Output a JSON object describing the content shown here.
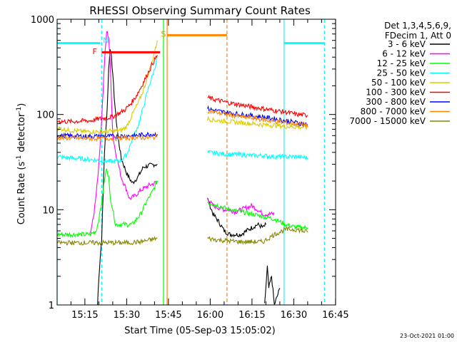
{
  "chart_data": {
    "type": "line",
    "title": "RHESSI Observing Summary Count Rates",
    "xlabel": "Start Time (05-Sep-03 15:05:02)",
    "ylabel_main": "Count Rate (s",
    "ylabel_sup1": "-1",
    "ylabel_mid": " detector",
    "ylabel_sup2": "-1",
    "ylabel_end": ")",
    "xlim_minutes": [
      0,
      100
    ],
    "ylim": [
      1,
      1000
    ],
    "yscale": "log",
    "xticks": [
      {
        "label": "15:15",
        "value": 9.97
      },
      {
        "label": "15:30",
        "value": 24.97
      },
      {
        "label": "15:45",
        "value": 39.97
      },
      {
        "label": "16:00",
        "value": 54.97
      },
      {
        "label": "16:15",
        "value": 69.97
      },
      {
        "label": "16:30",
        "value": 84.97
      },
      {
        "label": "16:45",
        "value": 99.97
      }
    ],
    "yticks": [
      {
        "label": "1",
        "value": 1
      },
      {
        "label": "10",
        "value": 10
      },
      {
        "label": "100",
        "value": 100
      },
      {
        "label": "1000",
        "value": 1000
      }
    ],
    "legend": {
      "header1": "Det 1,3,4,5,6,9,",
      "header2": "FDecim 1, Att 0",
      "position": "right"
    },
    "series": [
      {
        "name": "3 - 6 keV",
        "color": "#000000",
        "points": [
          [
            14.5,
            1
          ],
          [
            15,
            2
          ],
          [
            16,
            5
          ],
          [
            17,
            40
          ],
          [
            18,
            120
          ],
          [
            18.5,
            300
          ],
          [
            19,
            480
          ],
          [
            19.5,
            430
          ],
          [
            20,
            250
          ],
          [
            21,
            100
          ],
          [
            22,
            55
          ],
          [
            23,
            35
          ],
          [
            25,
            24
          ],
          [
            27,
            19
          ],
          [
            29,
            22
          ],
          [
            31,
            28
          ],
          [
            33,
            29
          ],
          [
            35,
            30
          ],
          [
            36,
            30
          ]
        ],
        "points2": [
          [
            54,
            13
          ],
          [
            56,
            9
          ],
          [
            58,
            7.5
          ],
          [
            60,
            6
          ],
          [
            62,
            5.5
          ],
          [
            64,
            5.5
          ],
          [
            66,
            5.5
          ],
          [
            68,
            6
          ],
          [
            70,
            6.5
          ],
          [
            72,
            7
          ],
          [
            74,
            6.5
          ],
          [
            75,
            7
          ]
        ],
        "points3": [
          [
            74.5,
            1
          ],
          [
            75.5,
            2.5
          ],
          [
            76,
            1.5
          ],
          [
            77,
            2
          ],
          [
            78,
            1
          ],
          [
            80,
            1.5
          ]
        ]
      },
      {
        "name": "6 - 12 keV",
        "color": "#ff00ff",
        "points": [
          [
            12,
            6
          ],
          [
            13,
            8
          ],
          [
            14,
            15
          ],
          [
            15,
            30
          ],
          [
            16,
            90
          ],
          [
            17,
            350
          ],
          [
            17.8,
            750
          ],
          [
            18.5,
            650
          ],
          [
            19,
            380
          ],
          [
            19.5,
            150
          ],
          [
            20,
            60
          ],
          [
            21,
            40
          ],
          [
            22,
            30
          ],
          [
            23,
            22
          ],
          [
            25,
            16
          ],
          [
            26,
            13
          ],
          [
            28,
            14
          ],
          [
            30,
            16
          ],
          [
            33,
            18
          ],
          [
            35,
            19
          ],
          [
            36,
            20
          ]
        ],
        "points2": [
          [
            54,
            13
          ],
          [
            56,
            11
          ],
          [
            58,
            10.5
          ],
          [
            60,
            10
          ],
          [
            62,
            10
          ],
          [
            64,
            9.5
          ],
          [
            66,
            10
          ],
          [
            68,
            10.5
          ],
          [
            70,
            11
          ],
          [
            72,
            10
          ],
          [
            74,
            9
          ],
          [
            76,
            9
          ],
          [
            78,
            9
          ]
        ]
      },
      {
        "name": "12 - 25 keV",
        "color": "#00ff00",
        "points": [
          [
            0,
            5.5
          ],
          [
            5,
            5.5
          ],
          [
            10,
            5.5
          ],
          [
            12,
            5.5
          ],
          [
            14,
            6
          ],
          [
            15,
            8
          ],
          [
            16,
            12
          ],
          [
            17,
            20
          ],
          [
            17.8,
            28
          ],
          [
            18.5,
            22
          ],
          [
            19,
            14
          ],
          [
            20,
            10
          ],
          [
            21,
            7
          ],
          [
            24,
            7
          ],
          [
            27,
            7
          ],
          [
            30,
            9
          ],
          [
            32,
            12
          ],
          [
            34,
            15
          ],
          [
            36,
            20
          ]
        ],
        "points2": [
          [
            54,
            12
          ],
          [
            58,
            11
          ],
          [
            62,
            10
          ],
          [
            66,
            9.5
          ],
          [
            70,
            9
          ],
          [
            74,
            8.5
          ],
          [
            78,
            8
          ],
          [
            82,
            7
          ],
          [
            86,
            6.5
          ],
          [
            90,
            6.5
          ]
        ]
      },
      {
        "name": "25 - 50 keV",
        "color": "#00ffff",
        "points": [
          [
            0,
            36
          ],
          [
            5,
            35
          ],
          [
            10,
            34
          ],
          [
            15,
            33
          ],
          [
            20,
            32
          ],
          [
            23,
            33
          ],
          [
            25,
            38
          ],
          [
            27,
            55
          ],
          [
            29,
            75
          ],
          [
            31,
            120
          ],
          [
            33,
            200
          ],
          [
            35,
            300
          ],
          [
            36,
            400
          ]
        ],
        "points2": [
          [
            54,
            40
          ],
          [
            58,
            39
          ],
          [
            62,
            38
          ],
          [
            66,
            38
          ],
          [
            70,
            37
          ],
          [
            74,
            37
          ],
          [
            78,
            36
          ],
          [
            82,
            36
          ],
          [
            86,
            36
          ],
          [
            90,
            35
          ]
        ]
      },
      {
        "name": "50 - 100 keV",
        "color": "#ddcc00",
        "points": [
          [
            0,
            72
          ],
          [
            5,
            68
          ],
          [
            10,
            66
          ],
          [
            15,
            66
          ],
          [
            20,
            67
          ],
          [
            23,
            68
          ],
          [
            25,
            75
          ],
          [
            27,
            100
          ],
          [
            29,
            130
          ],
          [
            31,
            180
          ],
          [
            33,
            280
          ],
          [
            35,
            450
          ],
          [
            36,
            600
          ]
        ],
        "points2": [
          [
            54,
            90
          ],
          [
            58,
            86
          ],
          [
            62,
            84
          ],
          [
            66,
            82
          ],
          [
            70,
            80
          ],
          [
            74,
            78
          ],
          [
            78,
            77
          ],
          [
            82,
            75
          ],
          [
            86,
            74
          ],
          [
            90,
            73
          ]
        ]
      },
      {
        "name": "100 - 300 keV",
        "color": "#ff0000",
        "points": [
          [
            0,
            85
          ],
          [
            5,
            84
          ],
          [
            10,
            86
          ],
          [
            12,
            86
          ],
          [
            15,
            90
          ],
          [
            18,
            92
          ],
          [
            20,
            95
          ],
          [
            22,
            102
          ],
          [
            24,
            110
          ],
          [
            26,
            125
          ],
          [
            28,
            150
          ],
          [
            30,
            190
          ],
          [
            32,
            250
          ],
          [
            34,
            330
          ],
          [
            36,
            420
          ]
        ],
        "points2": [
          [
            54,
            150
          ],
          [
            58,
            140
          ],
          [
            62,
            132
          ],
          [
            66,
            126
          ],
          [
            70,
            120
          ],
          [
            74,
            115
          ],
          [
            78,
            110
          ],
          [
            82,
            106
          ],
          [
            86,
            100
          ],
          [
            90,
            98
          ]
        ]
      },
      {
        "name": "300 - 800 keV",
        "color": "#0000ff",
        "points": [
          [
            0,
            60
          ],
          [
            10,
            59
          ],
          [
            20,
            59
          ],
          [
            28,
            60
          ],
          [
            30,
            61
          ],
          [
            33,
            62
          ],
          [
            36,
            62
          ]
        ],
        "points2": [
          [
            54,
            115
          ],
          [
            58,
            108
          ],
          [
            62,
            104
          ],
          [
            66,
            100
          ],
          [
            70,
            97
          ],
          [
            74,
            94
          ],
          [
            78,
            90
          ],
          [
            82,
            86
          ],
          [
            86,
            82
          ],
          [
            90,
            78
          ]
        ]
      },
      {
        "name": "800 - 7000 keV",
        "color": "#ff8800",
        "points": [
          [
            0,
            57
          ],
          [
            10,
            56
          ],
          [
            20,
            56
          ],
          [
            28,
            57
          ],
          [
            33,
            57
          ],
          [
            36,
            58
          ]
        ],
        "points2": [
          [
            54,
            110
          ],
          [
            58,
            104
          ],
          [
            62,
            99
          ],
          [
            66,
            95
          ],
          [
            70,
            92
          ],
          [
            74,
            88
          ],
          [
            78,
            85
          ],
          [
            82,
            82
          ],
          [
            86,
            79
          ],
          [
            90,
            77
          ]
        ]
      },
      {
        "name": "7000 - 15000 keV",
        "color": "#888800",
        "points": [
          [
            0,
            4.5
          ],
          [
            5,
            4.5
          ],
          [
            10,
            4.5
          ],
          [
            15,
            4.5
          ],
          [
            20,
            4.5
          ],
          [
            25,
            4.5
          ],
          [
            30,
            4.6
          ],
          [
            36,
            5
          ]
        ],
        "points2": [
          [
            54,
            5
          ],
          [
            58,
            4.8
          ],
          [
            62,
            4.7
          ],
          [
            66,
            4.6
          ],
          [
            70,
            4.6
          ],
          [
            74,
            4.6
          ],
          [
            78,
            5.5
          ],
          [
            82,
            6.2
          ],
          [
            86,
            6.2
          ],
          [
            90,
            5.8
          ]
        ]
      }
    ],
    "annotations": [
      {
        "label": "N",
        "color": "#00ffff",
        "x": 17.5,
        "y": 600
      },
      {
        "label": "F",
        "color": "#ff0000",
        "x": 13.5,
        "y": 460
      },
      {
        "label": "S",
        "color": "#ff8800",
        "x": 38.2,
        "y": 700
      }
    ],
    "bars": [
      {
        "name": "night-bar-left",
        "color": "#00ffff",
        "x0": 0,
        "x1": 15.5,
        "y": 560
      },
      {
        "name": "night-bar-right",
        "color": "#00ffff",
        "x0": 81.5,
        "x1": 96,
        "y": 560
      },
      {
        "name": "flare-bar",
        "color": "#ff0000",
        "x0": 16,
        "x1": 37,
        "y": 450
      },
      {
        "name": "saa-bar",
        "color": "#ff8800",
        "x0": 39.5,
        "x1": 61,
        "y": 680
      }
    ],
    "vlines": [
      {
        "name": "night-start-line",
        "color": "#00ffff",
        "x": 0,
        "dashed": false
      },
      {
        "name": "night-end-line",
        "color": "#00ffff",
        "x": 16,
        "dashed": true
      },
      {
        "name": "saa-start-line",
        "color": "#ff8800",
        "x": 39.5,
        "dashed": false
      },
      {
        "name": "saa-end-line",
        "color": "#ff8800",
        "x": 61,
        "dashed": true
      },
      {
        "name": "green-line",
        "color": "#00ff00",
        "x": 38.2,
        "dashed": false
      },
      {
        "name": "cyan-solid-line",
        "color": "#00ffff",
        "x": 81.5,
        "dashed": false
      },
      {
        "name": "cyan-dashed-line",
        "color": "#00ffff",
        "x": 96,
        "dashed": true
      }
    ]
  },
  "footer": {
    "timestamp": "23-Oct-2021 01:00"
  }
}
